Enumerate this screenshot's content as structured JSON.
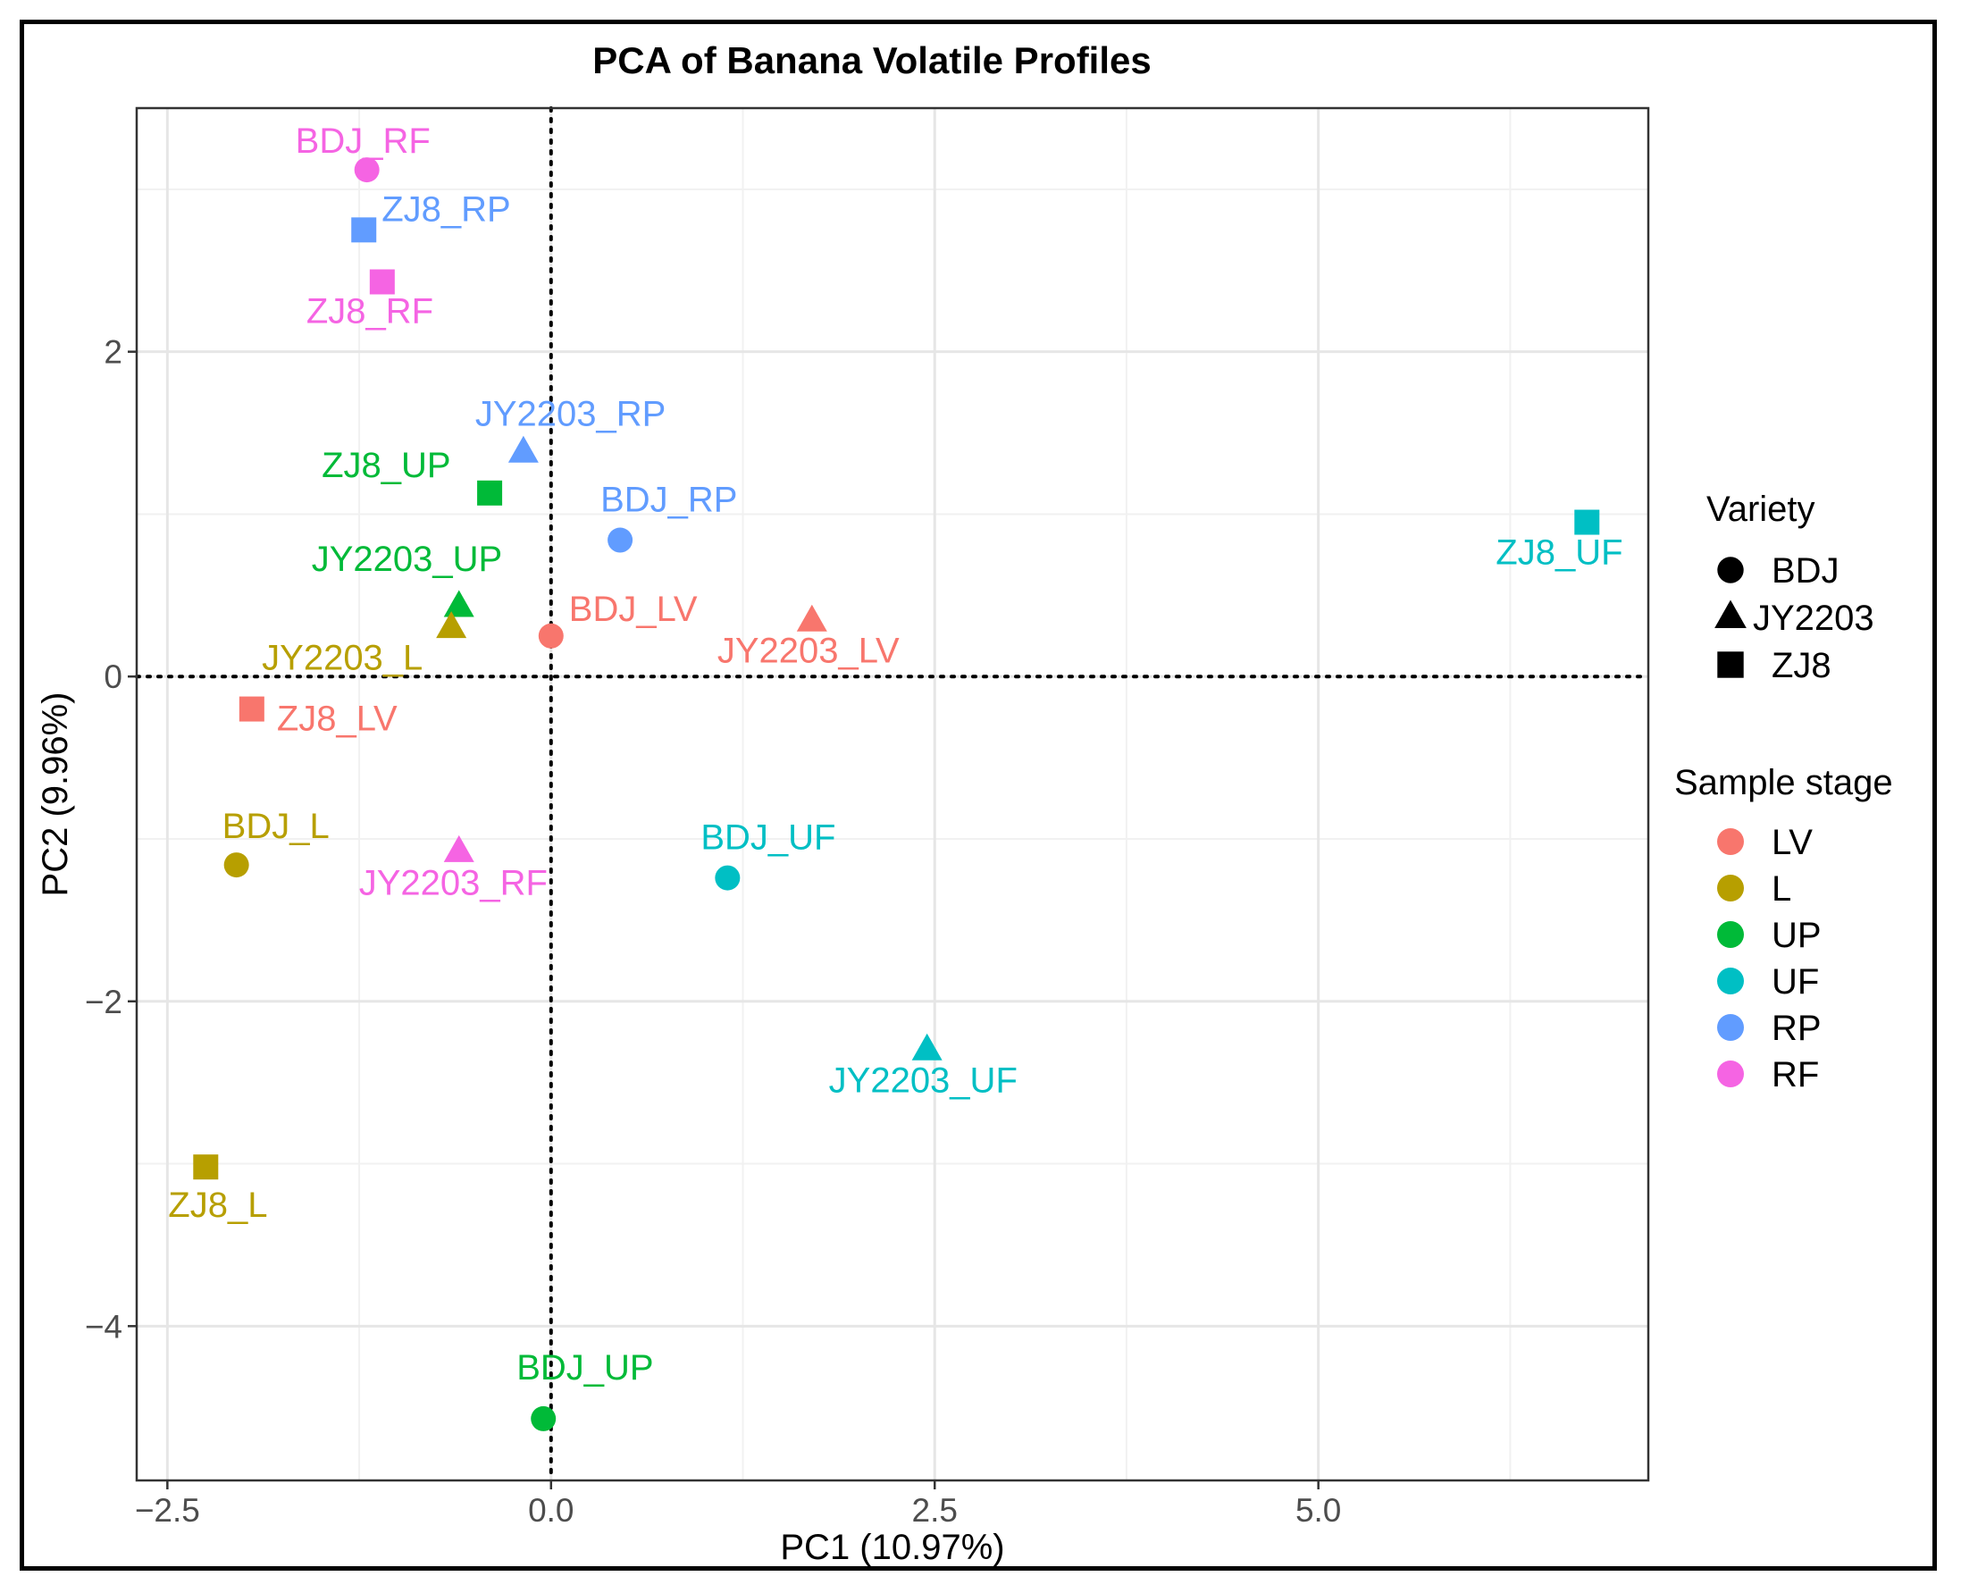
{
  "chart_data": {
    "type": "scatter",
    "title": "PCA of Banana Volatile Profiles",
    "xlabel": "PC1 (10.97%)",
    "ylabel": "PC2 (9.96%)",
    "xlim": [
      -2.7,
      7.15
    ],
    "ylim": [
      -4.95,
      3.5
    ],
    "xticks": [
      -2.5,
      0.0,
      2.5,
      5.0
    ],
    "xtick_labels": [
      "−2.5",
      "0.0",
      "2.5",
      "5.0"
    ],
    "yticks": [
      -4,
      -2,
      0,
      2
    ],
    "ytick_labels": [
      "−4",
      "−2",
      "0",
      "2"
    ],
    "grid": true,
    "reference_lines": {
      "x": 0,
      "y": 0,
      "style": "dotted"
    },
    "shape_legend": {
      "title": "Variety",
      "items": [
        {
          "label": "BDJ",
          "shape": "circle"
        },
        {
          "label": "JY2203",
          "shape": "triangle"
        },
        {
          "label": "ZJ8",
          "shape": "square"
        }
      ]
    },
    "color_legend": {
      "title": "Sample stage",
      "items": [
        {
          "label": "LV",
          "color": "#F8766D"
        },
        {
          "label": "L",
          "color": "#B79F00"
        },
        {
          "label": "UP",
          "color": "#00BA38"
        },
        {
          "label": "UF",
          "color": "#00BFC4"
        },
        {
          "label": "RP",
          "color": "#619CFF"
        },
        {
          "label": "RF",
          "color": "#F564E3"
        }
      ]
    },
    "points": [
      {
        "label": "BDJ_RF",
        "variety": "BDJ",
        "stage": "RF",
        "x": -1.2,
        "y": 3.12
      },
      {
        "label": "ZJ8_RP",
        "variety": "ZJ8",
        "stage": "RP",
        "x": -1.22,
        "y": 2.75
      },
      {
        "label": "ZJ8_RF",
        "variety": "ZJ8",
        "stage": "RF",
        "x": -1.1,
        "y": 2.43
      },
      {
        "label": "JY2203_RP",
        "variety": "JY2203",
        "stage": "RP",
        "x": -0.18,
        "y": 1.38
      },
      {
        "label": "ZJ8_UP",
        "variety": "ZJ8",
        "stage": "UP",
        "x": -0.4,
        "y": 1.13
      },
      {
        "label": "BDJ_RP",
        "variety": "BDJ",
        "stage": "RP",
        "x": 0.45,
        "y": 0.84
      },
      {
        "label": "ZJ8_UF",
        "variety": "ZJ8",
        "stage": "UF",
        "x": 6.75,
        "y": 0.95
      },
      {
        "label": "JY2203_UP",
        "variety": "JY2203",
        "stage": "UP",
        "x": -0.6,
        "y": 0.43
      },
      {
        "label": "JY2203_L",
        "variety": "JY2203",
        "stage": "L",
        "x": -0.65,
        "y": 0.3
      },
      {
        "label": "BDJ_LV",
        "variety": "BDJ",
        "stage": "LV",
        "x": 0.0,
        "y": 0.25
      },
      {
        "label": "JY2203_LV",
        "variety": "JY2203",
        "stage": "LV",
        "x": 1.7,
        "y": 0.34
      },
      {
        "label": "ZJ8_LV",
        "variety": "ZJ8",
        "stage": "LV",
        "x": -1.95,
        "y": -0.2
      },
      {
        "label": "BDJ_L",
        "variety": "BDJ",
        "stage": "L",
        "x": -2.05,
        "y": -1.16
      },
      {
        "label": "JY2203_RF",
        "variety": "JY2203",
        "stage": "RF",
        "x": -0.6,
        "y": -1.08
      },
      {
        "label": "BDJ_UF",
        "variety": "BDJ",
        "stage": "UF",
        "x": 1.15,
        "y": -1.24
      },
      {
        "label": "JY2203_UF",
        "variety": "JY2203",
        "stage": "UF",
        "x": 2.45,
        "y": -2.3
      },
      {
        "label": "ZJ8_L",
        "variety": "ZJ8",
        "stage": "L",
        "x": -2.25,
        "y": -3.02
      },
      {
        "label": "BDJ_UP",
        "variety": "BDJ",
        "stage": "UP",
        "x": -0.05,
        "y": -4.57
      }
    ]
  }
}
